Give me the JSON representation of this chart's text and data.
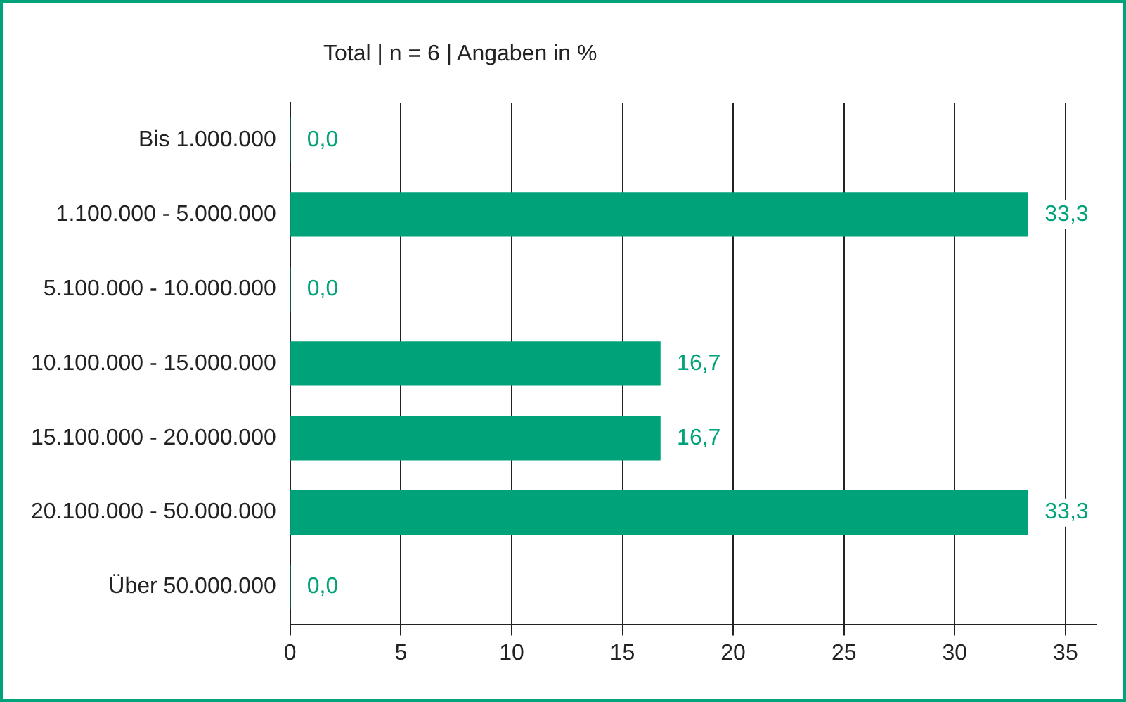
{
  "chart_data": {
    "type": "bar",
    "orientation": "horizontal",
    "title": "Total | n = 6 | Angaben in %",
    "categories": [
      "Bis 1.000.000",
      "1.100.000 - 5.000.000",
      "5.100.000 - 10.000.000",
      "10.100.000 - 15.000.000",
      "15.100.000 - 20.000.000",
      "20.100.000 - 50.000.000",
      "Über 50.000.000"
    ],
    "values": [
      0,
      33.3,
      0,
      16.7,
      16.7,
      33.3,
      0
    ],
    "value_labels": [
      "0,0",
      "33,3",
      "0,0",
      "16,7",
      "16,7",
      "33,3",
      "0,0"
    ],
    "color": "#00a27a",
    "xlim": [
      0,
      36.4
    ],
    "xticks": [
      0,
      5,
      10,
      15,
      20,
      25,
      30,
      35
    ],
    "grid": "x",
    "legend": false
  }
}
